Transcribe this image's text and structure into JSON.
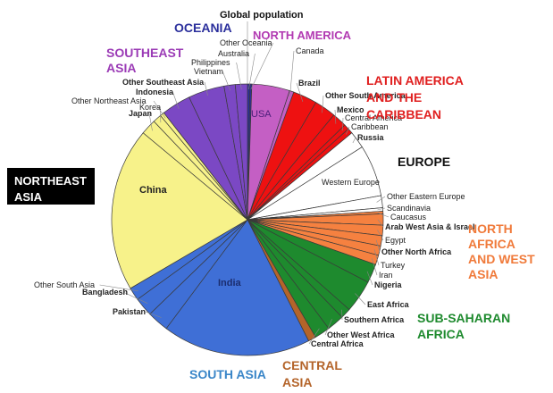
{
  "chart_data": {
    "type": "pie",
    "title": "Global population",
    "start_angle_deg": 0,
    "direction": "clockwise",
    "groups": [
      {
        "name": "OCEANIA",
        "color": "#2b2f9c",
        "label_color": "#2b2f9c",
        "slices": [
          {
            "label": "Australia",
            "value": 0.3
          },
          {
            "label": "Other Oceania",
            "value": 0.2
          }
        ]
      },
      {
        "name": "NORTH AMERICA",
        "color": "#c45fc4",
        "label_color": "#b23ab2",
        "slices": [
          {
            "label": "USA",
            "value": 4.4
          },
          {
            "label": "Canada",
            "value": 0.5
          }
        ]
      },
      {
        "name": "LATIN AMERICA AND THE CARIBBEAN",
        "color": "#ee1111",
        "label_color": "#e02020",
        "slices": [
          {
            "label": "Brazil",
            "value": 2.8
          },
          {
            "label": "Other South America",
            "value": 2.5
          },
          {
            "label": "Mexico",
            "value": 1.7
          },
          {
            "label": "Central America",
            "value": 0.6
          },
          {
            "label": "Caribbean",
            "value": 0.6
          }
        ]
      },
      {
        "name": "EUROPE",
        "color": "#ffffff",
        "label_color": "#111111",
        "slices": [
          {
            "label": "Russia",
            "value": 2.0
          },
          {
            "label": "Western Europe",
            "value": 6.0
          },
          {
            "label": "Other Eastern Europe",
            "value": 1.4
          },
          {
            "label": "Scandinavia",
            "value": 0.4
          }
        ]
      },
      {
        "name": "NORTH AFRICA AND WEST ASIA",
        "color": "#f58140",
        "label_color": "#f07a3a",
        "slices": [
          {
            "label": "Caucasus",
            "value": 0.3
          },
          {
            "label": "Arab West Asia & Israel",
            "value": 1.3
          },
          {
            "label": "Egypt",
            "value": 1.2
          },
          {
            "label": "Other North Africa",
            "value": 1.2
          },
          {
            "label": "Turkey",
            "value": 1.1
          },
          {
            "label": "Iran",
            "value": 1.1
          }
        ]
      },
      {
        "name": "SUB-SAHARAN AFRICA",
        "color": "#1e8a2e",
        "label_color": "#1e8a2e",
        "slices": [
          {
            "label": "Nigeria",
            "value": 2.2
          },
          {
            "label": "East Africa",
            "value": 3.8
          },
          {
            "label": "Southern Africa",
            "value": 1.2
          },
          {
            "label": "Other West Africa",
            "value": 2.0
          },
          {
            "label": "Central Africa",
            "value": 1.8
          }
        ]
      },
      {
        "name": "CENTRAL ASIA",
        "color": "#b4642a",
        "label_color": "#b4642a",
        "slices": [
          {
            "label": "",
            "value": 0.9
          }
        ]
      },
      {
        "name": "SOUTH ASIA",
        "color": "#3f6fd6",
        "label_color": "#3a86c8",
        "slices": [
          {
            "label": "India",
            "value": 17.2
          },
          {
            "label": "Pakistan",
            "value": 2.5
          },
          {
            "label": "Bangladesh",
            "value": 2.2
          },
          {
            "label": "Other South Asia",
            "value": 1.5
          }
        ]
      },
      {
        "name": "NORTHEAST ASIA",
        "color": "#f7f28a",
        "label_color": "#ffffff",
        "slices": [
          {
            "label": "China",
            "value": 19.0
          },
          {
            "label": "Japan",
            "value": 1.8
          },
          {
            "label": "Korea",
            "value": 1.0
          },
          {
            "label": "Other Northeast Asia",
            "value": 0.5
          }
        ]
      },
      {
        "name": "SOUTHEAST ASIA",
        "color": "#7b48c4",
        "label_color": "#9b3bb6",
        "slices": [
          {
            "label": "Indonesia",
            "value": 3.4
          },
          {
            "label": "Other Southeast Asia",
            "value": 4.2
          },
          {
            "label": "Vietnam",
            "value": 1.3
          },
          {
            "label": "Philippines",
            "value": 1.4
          }
        ]
      }
    ]
  }
}
